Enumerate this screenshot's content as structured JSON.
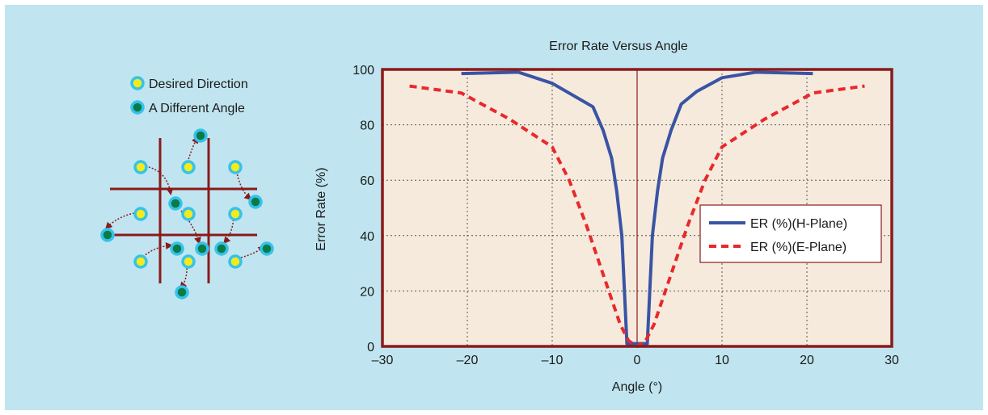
{
  "legend_left": {
    "desired_label": "Desired Direction",
    "different_label": "A Different Angle",
    "colors": {
      "ring": "#35c3ea",
      "desired_fill": "#f5ea1a",
      "different_fill": "#0a7a47",
      "grid_line": "#8b1a1a",
      "arrow": "#8b1a1a"
    }
  },
  "chart_data": {
    "type": "line",
    "title": "Error Rate Versus Angle",
    "xlabel": "Angle (°)",
    "ylabel": "Error Rate (%)",
    "xlim": [
      -30,
      30
    ],
    "ylim": [
      0,
      100
    ],
    "xticks": [
      -30,
      -20,
      -10,
      0,
      10,
      20,
      30
    ],
    "yticks": [
      0,
      20,
      40,
      60,
      80,
      100
    ],
    "x_tick_labels": [
      "–30",
      "–20",
      "–10",
      "0",
      "10",
      "20",
      "30"
    ],
    "y_tick_labels": [
      "0",
      "20",
      "40",
      "60",
      "80",
      "100"
    ],
    "grid": true,
    "legend_position": "right",
    "plot_background": "#f6eadd",
    "frame_color": "#8b1a1a",
    "series": [
      {
        "name": "ER (%)(H-Plane)",
        "color": "#3a54a4",
        "style": "solid",
        "x": [
          -20.7,
          -14,
          -10,
          -5.2,
          -4,
          -3,
          -2.4,
          -1.8,
          -1.2,
          1.2,
          1.8,
          2.4,
          3,
          4,
          5.2,
          7,
          10,
          14,
          20.7
        ],
        "y": [
          98.5,
          99,
          95,
          86.5,
          78,
          68,
          56,
          40,
          1,
          1,
          40,
          56,
          68,
          78,
          87.5,
          92,
          97,
          99,
          98.5
        ]
      },
      {
        "name": "ER (%)(E-Plane)",
        "color": "#e8292c",
        "style": "dashed",
        "x": [
          -26.8,
          -20.7,
          -15,
          -10,
          -8,
          -6,
          -4,
          -2,
          -1,
          0,
          1,
          2,
          4,
          6,
          8,
          10,
          15,
          20.7,
          26.8
        ],
        "y": [
          94,
          91.5,
          82,
          72,
          60,
          44,
          26,
          8,
          2,
          0,
          2,
          8,
          26,
          44,
          60,
          72,
          82,
          91.5,
          94
        ]
      }
    ]
  }
}
